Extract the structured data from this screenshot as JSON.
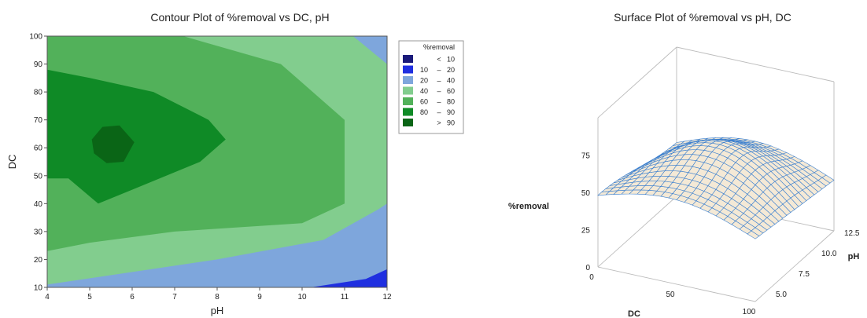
{
  "chart_data": [
    {
      "type": "contour",
      "title": "Contour Plot of %removal vs DC, pH",
      "xlabel": "pH",
      "ylabel": "DC",
      "xlim": [
        4,
        12
      ],
      "ylim": [
        10,
        100
      ],
      "xticks": [
        4,
        5,
        6,
        7,
        8,
        9,
        10,
        11,
        12
      ],
      "yticks": [
        10,
        20,
        30,
        40,
        50,
        60,
        70,
        80,
        90,
        100
      ],
      "legend": {
        "title": "%removal",
        "position": "right",
        "entries": [
          {
            "lo": "",
            "op": "<",
            "hi": "10",
            "color": "#1a1a7a"
          },
          {
            "lo": "10",
            "op": "–",
            "hi": "20",
            "color": "#1f2fe0"
          },
          {
            "lo": "20",
            "op": "–",
            "hi": "40",
            "color": "#7ea6dc"
          },
          {
            "lo": "40",
            "op": "–",
            "hi": "60",
            "color": "#82cd8e"
          },
          {
            "lo": "60",
            "op": "–",
            "hi": "80",
            "color": "#52b15a"
          },
          {
            "lo": "80",
            "op": "–",
            "hi": "90",
            "color": "#0f8a26"
          },
          {
            "lo": "",
            "op": ">",
            "hi": "90",
            "color": "#0a6516"
          }
        ]
      },
      "regions": [
        {
          "level": "40-60",
          "points": [
            [
              4,
              10
            ],
            [
              4,
              100
            ],
            [
              10.2,
              100
            ],
            [
              12,
              90
            ],
            [
              12,
              40
            ],
            [
              10,
              10
            ]
          ]
        },
        {
          "level": "60-80",
          "points": [
            [
              4,
              23
            ],
            [
              4,
              100
            ],
            [
              7.2,
              100
            ],
            [
              9.5,
              90
            ],
            [
              11,
              70
            ],
            [
              11,
              40
            ],
            [
              10,
              33
            ],
            [
              7,
              30
            ],
            [
              5,
              26
            ]
          ]
        },
        {
          "level": "80-90",
          "points": [
            [
              4,
              49
            ],
            [
              4,
              88
            ],
            [
              5,
              85
            ],
            [
              6.5,
              80
            ],
            [
              7.8,
              70
            ],
            [
              8.2,
              63
            ],
            [
              7.6,
              55
            ],
            [
              6,
              45
            ],
            [
              5.2,
              40
            ],
            [
              4.5,
              49
            ]
          ]
        },
        {
          "level": ">90",
          "points": [
            [
              5.05,
              63
            ],
            [
              5.3,
              67.5
            ],
            [
              5.7,
              68
            ],
            [
              6.05,
              62
            ],
            [
              5.8,
              55
            ],
            [
              5.4,
              54.5
            ],
            [
              5.1,
              58
            ]
          ]
        },
        {
          "level": "20-40",
          "points": [
            [
              11.2,
              100
            ],
            [
              12,
              100
            ],
            [
              12,
              90
            ]
          ]
        },
        {
          "level": "20-40",
          "points": [
            [
              4,
              10
            ],
            [
              4,
              11
            ],
            [
              8,
              20
            ],
            [
              10.5,
              27
            ],
            [
              11.8,
              38
            ],
            [
              12,
              40
            ],
            [
              12,
              10
            ]
          ]
        },
        {
          "level": "10-20",
          "points": [
            [
              10.2,
              10
            ],
            [
              11.5,
              13
            ],
            [
              12,
              16.5
            ],
            [
              12,
              10
            ]
          ]
        }
      ]
    },
    {
      "type": "surface",
      "title": "Surface Plot of %removal vs pH, DC",
      "xlabel": "DC",
      "ylabel": "pH",
      "zlabel": "%removal",
      "xticks": [
        "0",
        "50",
        "100"
      ],
      "yticks": [
        "5.0",
        "7.5",
        "10.0",
        "12.5"
      ],
      "zticks": [
        "0",
        "25",
        "50",
        "75"
      ],
      "xlim": [
        0,
        100
      ],
      "ylim": [
        4,
        12
      ],
      "zlim": [
        0,
        100
      ],
      "surface_color": "#f4e9d6",
      "mesh_color": "#3a7fcf"
    }
  ]
}
